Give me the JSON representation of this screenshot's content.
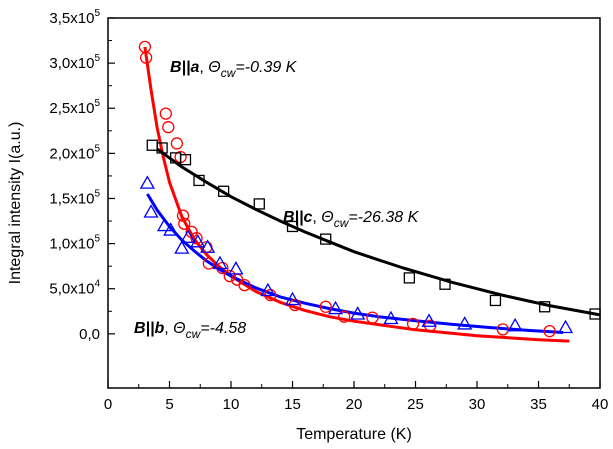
{
  "chart_data": {
    "type": "scatter",
    "xlabel": "Temperature (K)",
    "ylabel": "Integral intensity I(a.u.)",
    "xlim": [
      0,
      40
    ],
    "ylim": [
      -60000,
      350000
    ],
    "x_ticks": [
      0,
      5,
      10,
      15,
      20,
      25,
      30,
      35,
      40
    ],
    "y_ticks": [
      {
        "value": 0,
        "mant": "0,0",
        "exp": ""
      },
      {
        "value": 50000,
        "mant": "5,0x10",
        "exp": "4"
      },
      {
        "value": 100000,
        "mant": "1,0x10",
        "exp": "5"
      },
      {
        "value": 150000,
        "mant": "1,5x10",
        "exp": "5"
      },
      {
        "value": 200000,
        "mant": "2,0x10",
        "exp": "5"
      },
      {
        "value": 250000,
        "mant": "2,5x10",
        "exp": "5"
      },
      {
        "value": 300000,
        "mant": "3,0x10",
        "exp": "5"
      },
      {
        "value": 350000,
        "mant": "3,5x10",
        "exp": "5"
      }
    ],
    "series": [
      {
        "key": "a",
        "marker": "circle",
        "color": "#ff0000",
        "points": [
          [
            3.0,
            318000
          ],
          [
            3.1,
            306000
          ],
          [
            4.7,
            244000
          ],
          [
            4.9,
            229000
          ],
          [
            5.6,
            211000
          ],
          [
            5.9,
            196000
          ],
          [
            6.1,
            131000
          ],
          [
            6.2,
            122000
          ],
          [
            6.8,
            113000
          ],
          [
            7.2,
            106000
          ],
          [
            8.0,
            96000
          ],
          [
            8.2,
            78000
          ],
          [
            9.3,
            73000
          ],
          [
            9.9,
            64000
          ],
          [
            10.5,
            60000
          ],
          [
            11.1,
            54000
          ],
          [
            13.2,
            43000
          ],
          [
            15.2,
            32000
          ],
          [
            17.7,
            30000
          ],
          [
            19.2,
            19000
          ],
          [
            21.5,
            18000
          ],
          [
            24.8,
            11000
          ],
          [
            26.2,
            9000
          ],
          [
            32.1,
            5000
          ],
          [
            35.9,
            3000
          ]
        ],
        "fit": [
          [
            3.0,
            318000
          ],
          [
            3.5,
            270000
          ],
          [
            4.0,
            228000
          ],
          [
            4.5,
            196000
          ],
          [
            5.0,
            168000
          ],
          [
            6.0,
            130000
          ],
          [
            7.0,
            105000
          ],
          [
            8.0,
            88000
          ],
          [
            9.0,
            75000
          ],
          [
            10.0,
            64000
          ],
          [
            12.0,
            47000
          ],
          [
            14.0,
            35000
          ],
          [
            16.0,
            26000
          ],
          [
            18.0,
            19000
          ],
          [
            20.0,
            14000
          ],
          [
            25.0,
            4500
          ],
          [
            30.0,
            -2000
          ],
          [
            35.0,
            -6500
          ],
          [
            37.5,
            -8000
          ]
        ]
      },
      {
        "key": "b",
        "marker": "triangle",
        "color": "#0000ff",
        "points": [
          [
            3.2,
            167000
          ],
          [
            3.5,
            135000
          ],
          [
            4.6,
            120000
          ],
          [
            5.1,
            115000
          ],
          [
            6.0,
            95000
          ],
          [
            6.5,
            107000
          ],
          [
            7.3,
            102000
          ],
          [
            8.1,
            96000
          ],
          [
            9.1,
            78000
          ],
          [
            10.4,
            72000
          ],
          [
            13.0,
            48000
          ],
          [
            15.0,
            38000
          ],
          [
            18.5,
            28000
          ],
          [
            20.3,
            22000
          ],
          [
            23.0,
            17000
          ],
          [
            26.1,
            14000
          ],
          [
            29.0,
            11000
          ],
          [
            33.1,
            9000
          ],
          [
            37.2,
            7000
          ]
        ],
        "fit": [
          [
            3.2,
            155000
          ],
          [
            4.0,
            137000
          ],
          [
            5.0,
            119000
          ],
          [
            6.0,
            104000
          ],
          [
            7.0,
            92000
          ],
          [
            8.0,
            81000
          ],
          [
            9.0,
            72000
          ],
          [
            10.0,
            64000
          ],
          [
            12.0,
            51000
          ],
          [
            14.0,
            41000
          ],
          [
            16.0,
            34000
          ],
          [
            18.0,
            28000
          ],
          [
            20.0,
            23000
          ],
          [
            22.0,
            19000
          ],
          [
            25.0,
            14500
          ],
          [
            28.0,
            10500
          ],
          [
            31.0,
            7000
          ],
          [
            34.0,
            4000
          ],
          [
            37.0,
            1500
          ]
        ]
      },
      {
        "key": "c",
        "marker": "square",
        "color": "#000000",
        "points": [
          [
            3.6,
            209000
          ],
          [
            4.4,
            206000
          ],
          [
            5.5,
            195000
          ],
          [
            6.3,
            193000
          ],
          [
            7.4,
            170000
          ],
          [
            9.4,
            158000
          ],
          [
            12.3,
            144000
          ],
          [
            15.0,
            119000
          ],
          [
            17.7,
            105000
          ],
          [
            24.5,
            62000
          ],
          [
            27.4,
            55000
          ],
          [
            31.5,
            37000
          ],
          [
            35.5,
            30000
          ],
          [
            39.6,
            22000
          ]
        ],
        "fit": [
          [
            4.0,
            205000
          ],
          [
            6.0,
            185000
          ],
          [
            8.0,
            168000
          ],
          [
            10.0,
            152000
          ],
          [
            12.0,
            138000
          ],
          [
            14.0,
            125000
          ],
          [
            16.0,
            113000
          ],
          [
            18.0,
            102000
          ],
          [
            20.0,
            91000
          ],
          [
            22.0,
            82000
          ],
          [
            24.0,
            73000
          ],
          [
            26.0,
            65000
          ],
          [
            28.0,
            57000
          ],
          [
            30.0,
            50000
          ],
          [
            32.0,
            43000
          ],
          [
            34.0,
            37000
          ],
          [
            36.0,
            31000
          ],
          [
            38.0,
            26000
          ],
          [
            40.0,
            21000
          ]
        ]
      }
    ],
    "annotations": [
      {
        "key": "a",
        "bold": "B||a",
        "theta_sym": "Θ",
        "theta_sub": "cw",
        "value": "=-0.39 K"
      },
      {
        "key": "c",
        "bold": "B||c",
        "theta_sym": "Θ",
        "theta_sub": "cw",
        "value": "=-26.38 K"
      },
      {
        "key": "b",
        "bold": "B||b",
        "theta_sym": "Θ",
        "theta_sub": "cw",
        "value": "=-4.58"
      }
    ]
  }
}
